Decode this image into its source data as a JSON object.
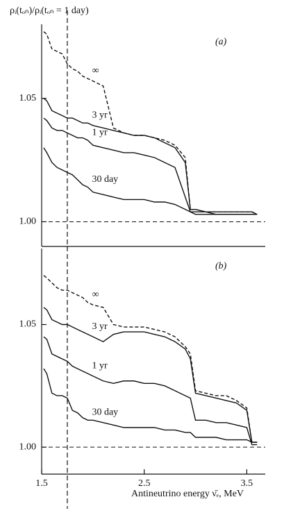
{
  "chart_data": [
    {
      "type": "line",
      "panel_label": "(a)",
      "ylabel": "ρᵢ(tₒₙ)/ρᵢ(tₒₙ = 1 day)",
      "x": [
        1.52,
        1.55,
        1.6,
        1.65,
        1.7,
        1.75,
        1.8,
        1.85,
        1.9,
        1.95,
        2.0,
        2.1,
        2.2,
        2.3,
        2.4,
        2.5,
        2.6,
        2.7,
        2.8,
        2.9,
        2.95,
        3.0,
        3.1,
        3.2,
        3.3,
        3.4,
        3.5,
        3.55,
        3.6
      ],
      "series": [
        {
          "name": "∞",
          "color": "#111",
          "dashed": true,
          "values": [
            1.077,
            1.076,
            1.07,
            1.069,
            1.068,
            1.064,
            1.062,
            1.061,
            1.059,
            1.058,
            1.057,
            1.055,
            1.038,
            1.036,
            1.035,
            1.035,
            1.034,
            1.033,
            1.031,
            1.026,
            1.005,
            1.005,
            1.004,
            1.004,
            1.004,
            1.004,
            1.004,
            1.004,
            1.003
          ]
        },
        {
          "name": "3 yr",
          "color": "#111",
          "dashed": false,
          "values": [
            1.05,
            1.049,
            1.045,
            1.044,
            1.043,
            1.042,
            1.042,
            1.041,
            1.04,
            1.04,
            1.039,
            1.038,
            1.037,
            1.036,
            1.035,
            1.035,
            1.034,
            1.032,
            1.03,
            1.024,
            1.005,
            1.005,
            1.004,
            1.004,
            1.004,
            1.004,
            1.004,
            1.004,
            1.003
          ]
        },
        {
          "name": "1 yr",
          "color": "#111",
          "dashed": false,
          "values": [
            1.042,
            1.041,
            1.038,
            1.037,
            1.037,
            1.036,
            1.035,
            1.034,
            1.034,
            1.033,
            1.031,
            1.03,
            1.029,
            1.028,
            1.028,
            1.027,
            1.026,
            1.024,
            1.022,
            1.01,
            1.004,
            1.004,
            1.004,
            1.003,
            1.003,
            1.003,
            1.003,
            1.003,
            1.003
          ]
        },
        {
          "name": "30 day",
          "color": "#111",
          "dashed": false,
          "values": [
            1.03,
            1.028,
            1.024,
            1.022,
            1.021,
            1.02,
            1.019,
            1.017,
            1.015,
            1.014,
            1.012,
            1.011,
            1.01,
            1.009,
            1.009,
            1.009,
            1.008,
            1.008,
            1.007,
            1.005,
            1.004,
            1.003,
            1.003,
            1.003,
            1.003,
            1.003,
            1.003,
            1.003,
            1.003
          ]
        }
      ],
      "xlim": [
        1.5,
        3.68
      ],
      "ylim": [
        0.99,
        1.08
      ],
      "yticks": [
        {
          "value": 1.0,
          "label": "1.00"
        },
        {
          "value": 1.05,
          "label": "1.05"
        }
      ],
      "vline_x": 1.75,
      "hline_y": 1.0
    },
    {
      "type": "line",
      "panel_label": "(b)",
      "xlabel": "Antineutrino energy ν̄ₑ, MeV",
      "x": [
        1.52,
        1.55,
        1.6,
        1.65,
        1.7,
        1.75,
        1.8,
        1.85,
        1.9,
        1.95,
        2.0,
        2.1,
        2.2,
        2.3,
        2.4,
        2.5,
        2.6,
        2.7,
        2.8,
        2.9,
        2.95,
        3.0,
        3.1,
        3.2,
        3.3,
        3.4,
        3.5,
        3.55,
        3.6
      ],
      "series": [
        {
          "name": "∞",
          "color": "#111",
          "dashed": true,
          "values": [
            1.07,
            1.069,
            1.067,
            1.065,
            1.064,
            1.064,
            1.063,
            1.062,
            1.061,
            1.059,
            1.058,
            1.057,
            1.05,
            1.049,
            1.049,
            1.049,
            1.048,
            1.047,
            1.045,
            1.041,
            1.038,
            1.023,
            1.022,
            1.021,
            1.021,
            1.019,
            1.016,
            1.002,
            1.002
          ]
        },
        {
          "name": "3 yr",
          "color": "#111",
          "dashed": false,
          "values": [
            1.057,
            1.056,
            1.052,
            1.051,
            1.05,
            1.05,
            1.049,
            1.048,
            1.047,
            1.046,
            1.045,
            1.043,
            1.046,
            1.047,
            1.047,
            1.047,
            1.046,
            1.045,
            1.043,
            1.04,
            1.036,
            1.022,
            1.021,
            1.02,
            1.019,
            1.018,
            1.015,
            1.002,
            1.002
          ]
        },
        {
          "name": "1 yr",
          "color": "#111",
          "dashed": false,
          "values": [
            1.045,
            1.044,
            1.038,
            1.037,
            1.036,
            1.035,
            1.033,
            1.032,
            1.031,
            1.03,
            1.029,
            1.027,
            1.026,
            1.027,
            1.027,
            1.026,
            1.026,
            1.025,
            1.023,
            1.021,
            1.02,
            1.011,
            1.011,
            1.01,
            1.01,
            1.009,
            1.008,
            1.001,
            1.001
          ]
        },
        {
          "name": "30 day",
          "color": "#111",
          "dashed": false,
          "values": [
            1.032,
            1.03,
            1.022,
            1.021,
            1.021,
            1.02,
            1.015,
            1.014,
            1.012,
            1.011,
            1.011,
            1.01,
            1.009,
            1.008,
            1.008,
            1.008,
            1.008,
            1.007,
            1.007,
            1.006,
            1.006,
            1.004,
            1.004,
            1.004,
            1.003,
            1.003,
            1.003,
            1.002,
            1.002
          ]
        }
      ],
      "xlim": [
        1.5,
        3.68
      ],
      "ylim": [
        0.989,
        1.081
      ],
      "xticks": [
        1.5,
        2.5,
        3.5
      ],
      "yticks": [
        {
          "value": 1.0,
          "label": "1.00"
        },
        {
          "value": 1.05,
          "label": "1.05"
        }
      ],
      "vline_x": 1.75,
      "hline_y": 1.0
    }
  ]
}
